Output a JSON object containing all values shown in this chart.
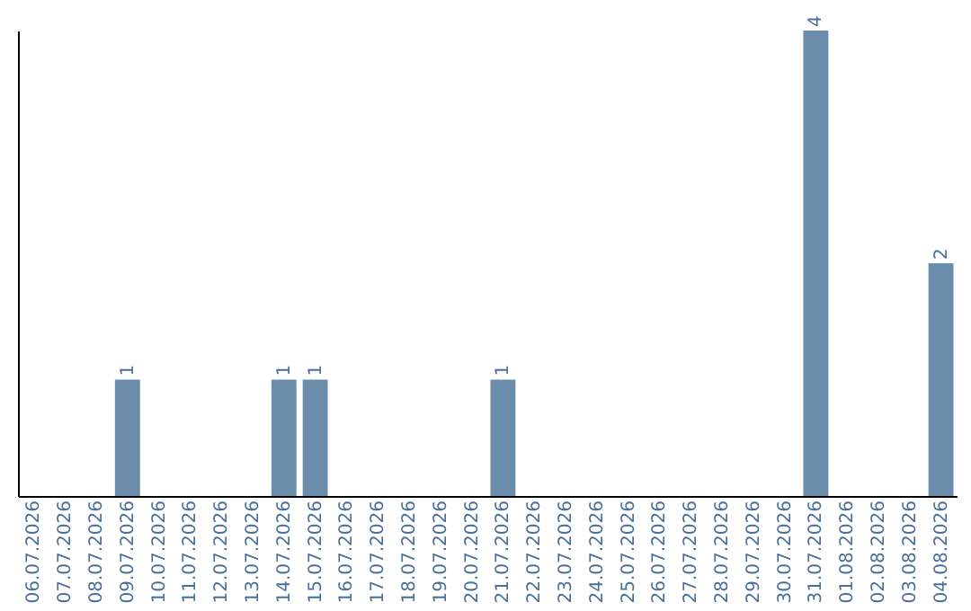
{
  "chart_data": {
    "type": "bar",
    "categories": [
      "06.07.2026",
      "07.07.2026",
      "08.07.2026",
      "09.07.2026",
      "10.07.2026",
      "11.07.2026",
      "12.07.2026",
      "13.07.2026",
      "14.07.2026",
      "15.07.2026",
      "16.07.2026",
      "17.07.2026",
      "18.07.2026",
      "19.07.2026",
      "20.07.2026",
      "21.07.2026",
      "22.07.2026",
      "23.07.2026",
      "24.07.2026",
      "25.07.2026",
      "26.07.2026",
      "27.07.2026",
      "28.07.2026",
      "29.07.2026",
      "30.07.2026",
      "31.07.2026",
      "01.08.2026",
      "02.08.2026",
      "03.08.2026",
      "04.08.2026"
    ],
    "values": [
      null,
      null,
      null,
      1,
      null,
      null,
      null,
      null,
      1,
      1,
      null,
      null,
      null,
      null,
      null,
      1,
      null,
      null,
      null,
      null,
      null,
      null,
      null,
      null,
      null,
      4,
      null,
      null,
      null,
      2
    ],
    "color": "#6b8cab",
    "data_labels": true,
    "tick_labels": "x",
    "grid": false
  }
}
